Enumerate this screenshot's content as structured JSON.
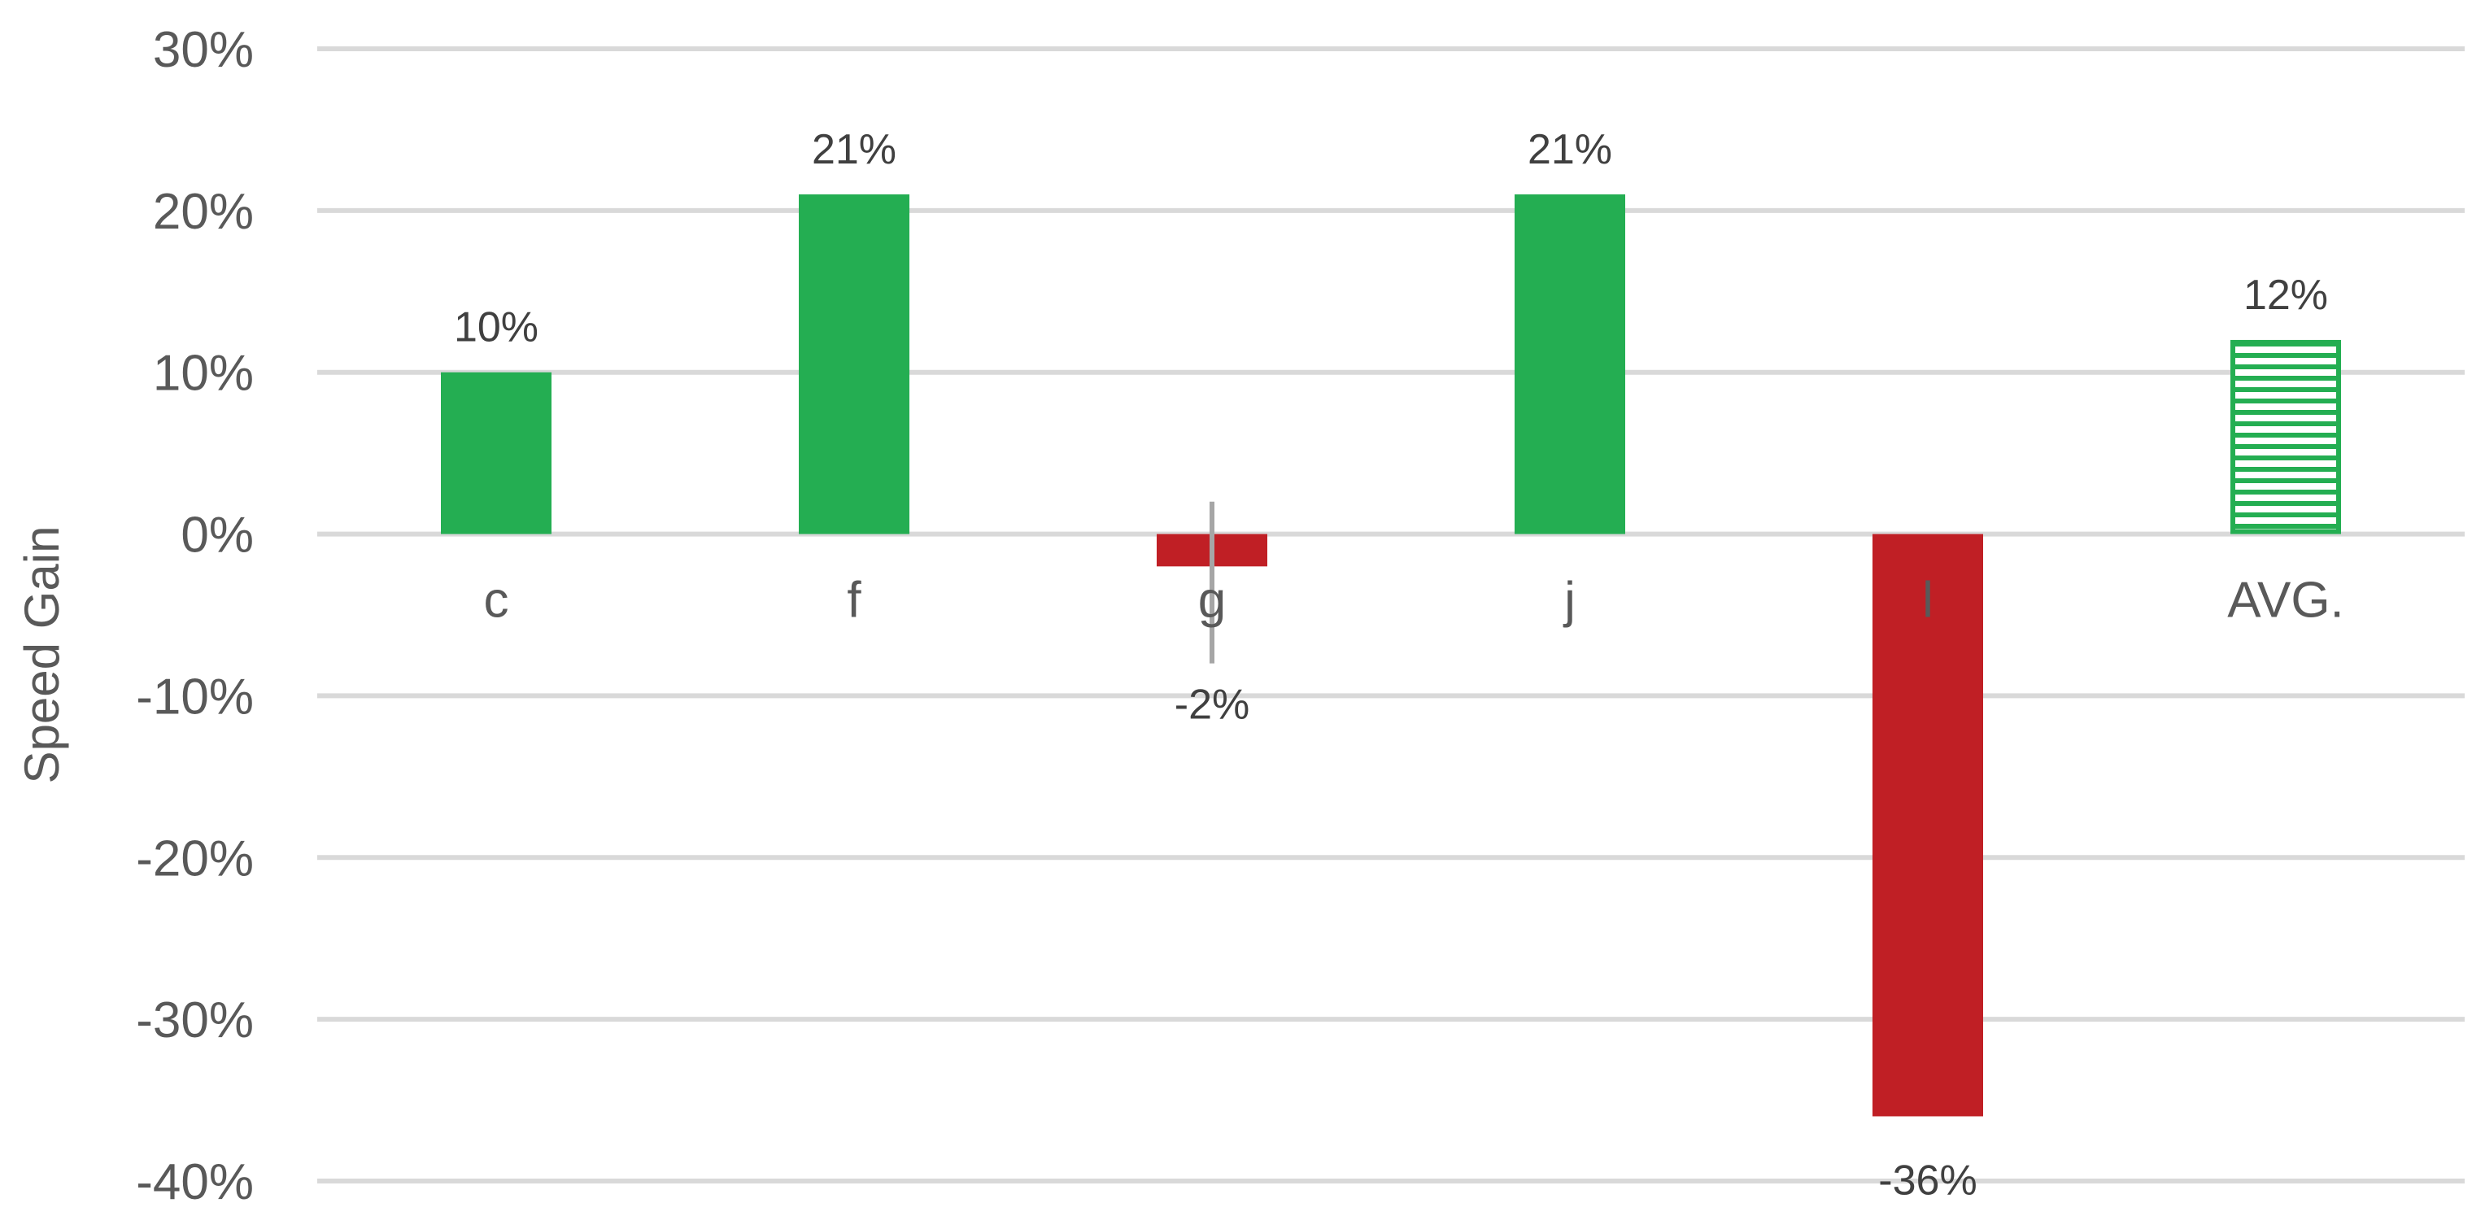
{
  "chart_data": {
    "type": "bar",
    "title": "",
    "xlabel": "",
    "ylabel": "Speed Gain",
    "categories": [
      "c",
      "f",
      "g",
      "j",
      "l",
      "AVG."
    ],
    "values": [
      10,
      21,
      -2,
      21,
      -36,
      12
    ],
    "data_labels": [
      "10%",
      "21%",
      "-2%",
      "21%",
      "-36%",
      "12%"
    ],
    "y_ticks": [
      30,
      20,
      10,
      0,
      -10,
      -20,
      -30,
      -40
    ],
    "y_tick_labels": [
      "30%",
      "20%",
      "10%",
      "0%",
      "-10%",
      "-20%",
      "-30%",
      "-40%"
    ],
    "ylim": [
      -40,
      30
    ],
    "y_unit": "%",
    "grid": true,
    "legend": "none",
    "colors": {
      "positive": "#24ae52",
      "negative": "#c01f25",
      "average_hatch": "#24ae52",
      "grid": "#d9d9d9",
      "axis_text": "#595959",
      "label_text": "#404040",
      "error_bar": "#a6a6a6"
    },
    "bar_styles": [
      "solid",
      "solid",
      "solid",
      "solid",
      "solid",
      "hatched"
    ],
    "error_bars": [
      null,
      null,
      [
        -8,
        2
      ],
      null,
      null,
      null
    ]
  }
}
